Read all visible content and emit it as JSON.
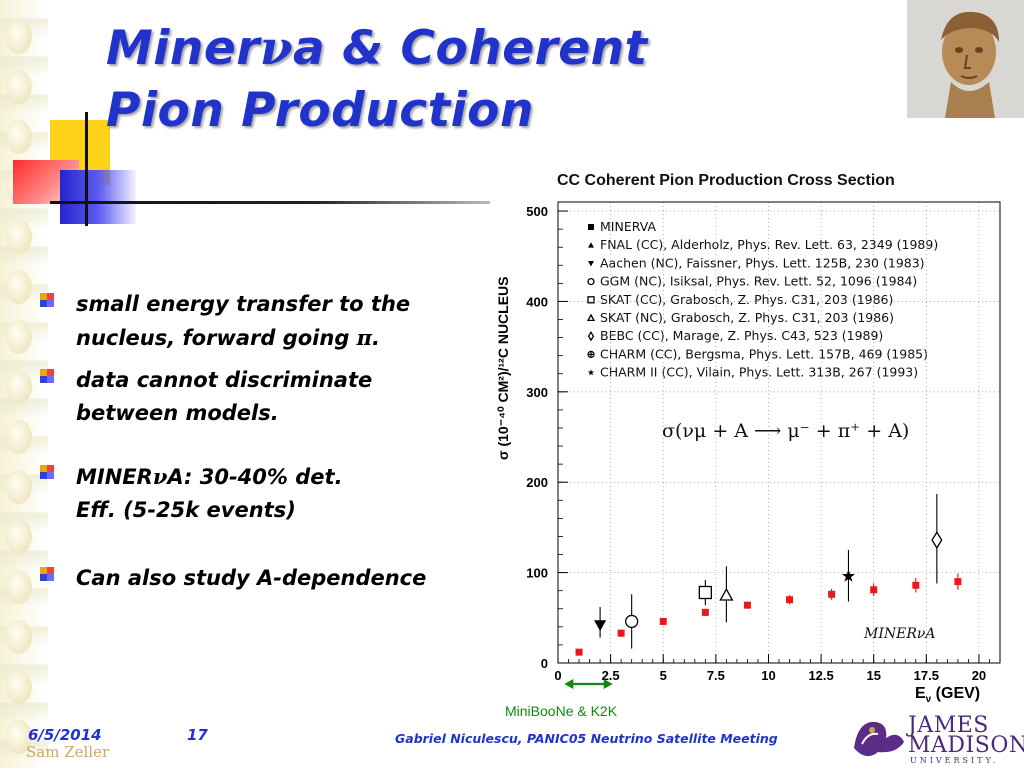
{
  "slide": {
    "title_line1_pre": "Miner",
    "title_line1_nu": "ν",
    "title_line1_post": "a & Coherent",
    "title_line2": "Pion Production"
  },
  "bullets": [
    {
      "pre": "small energy transfer to the",
      "line2": "nucleus, forward going ",
      "sym": "π",
      "post": "."
    },
    {
      "line1": "data cannot discriminate",
      "line2": "between models."
    },
    {
      "pre": "MINER",
      "sym": "ν",
      "post": "A: 30-40% det.",
      "line2": "Eff. (5-25k events)"
    },
    {
      "line1": "Can also study A-dependence"
    }
  ],
  "footer": {
    "date": "6/5/2014",
    "page": "17",
    "author": "Sam Zeller",
    "meeting": "Gabriel Niculescu, PANIC05 Neutrino Satellite Meeting",
    "logo_name_1": "JAMES",
    "logo_name_2": "MADISON",
    "logo_sub": "UNIVERSITY."
  },
  "chart_data": {
    "type": "scatter",
    "title": "CC Coherent Pion Production Cross Section",
    "ylabel": "σ (10⁻⁴⁰ CM²)/¹²C NUCLEUS",
    "xlabel_main": "E",
    "xlabel_sub": "ν",
    "xlabel_unit": " (GEV)",
    "xlim": [
      0,
      21
    ],
    "ylim": [
      0,
      510
    ],
    "xticks": [
      0,
      2.5,
      5,
      7.5,
      10,
      12.5,
      15,
      17.5,
      20
    ],
    "xtick_labels": [
      "0",
      "2.5",
      "5",
      "7.5",
      "10",
      "12.5",
      "15",
      "17.5",
      "20"
    ],
    "yticks": [
      0,
      100,
      200,
      300,
      400,
      500
    ],
    "ytick_labels": [
      "0",
      "100",
      "200",
      "300",
      "400",
      "500"
    ],
    "formula": "σ(νμ + A ⟶ μ⁻ + π⁺ + A)",
    "annotation": "MINERνA",
    "range_label": "MiniBooNe & K2K",
    "range_x": [
      0.3,
      2.6
    ],
    "legend": [
      {
        "marker": "square-filled",
        "label": "MINERVA"
      },
      {
        "marker": "triangle-up-filled",
        "label": "FNAL (CC), Alderholz, Phys. Rev. Lett. 63, 2349 (1989)"
      },
      {
        "marker": "triangle-down-filled",
        "label": "Aachen (NC), Faissner, Phys. Lett. 125B, 230 (1983)"
      },
      {
        "marker": "circle-open",
        "label": "GGM (NC), Isiksal, Phys. Rev. Lett. 52, 1096 (1984)"
      },
      {
        "marker": "square-open",
        "label": "SKAT (CC), Grabosch, Z. Phys. C31, 203 (1986)"
      },
      {
        "marker": "triangle-up-open",
        "label": "SKAT (NC), Grabosch, Z. Phys. C31, 203 (1986)"
      },
      {
        "marker": "diamond-open",
        "label": "BEBC (CC), Marage, Z. Phys. C43, 523 (1989)"
      },
      {
        "marker": "cross-circle",
        "label": "CHARM (CC), Bergsma, Phys. Lett. 157B, 469 (1985)"
      },
      {
        "marker": "star",
        "label": "CHARM II (CC), Vilain, Phys. Lett. 313B, 267 (1993)"
      }
    ],
    "minerva_points": [
      {
        "x": 1.0,
        "y": 12,
        "err": 2
      },
      {
        "x": 3.0,
        "y": 33,
        "err": 4
      },
      {
        "x": 5.0,
        "y": 46,
        "err": 4
      },
      {
        "x": 7.0,
        "y": 56,
        "err": 4
      },
      {
        "x": 9.0,
        "y": 64,
        "err": 4
      },
      {
        "x": 11.0,
        "y": 70,
        "err": 5
      },
      {
        "x": 13.0,
        "y": 76,
        "err": 6
      },
      {
        "x": 15.0,
        "y": 81,
        "err": 7
      },
      {
        "x": 17.0,
        "y": 86,
        "err": 8
      },
      {
        "x": 19.0,
        "y": 90,
        "err": 9
      }
    ],
    "other_points": [
      {
        "marker": "triangle-down-filled",
        "x": 2.0,
        "y": 42,
        "ylo": 28,
        "yhi": 62
      },
      {
        "marker": "circle-open",
        "x": 3.5,
        "y": 46,
        "ylo": 16,
        "yhi": 76
      },
      {
        "marker": "square-open",
        "x": 7.0,
        "y": 78,
        "ylo": 64,
        "yhi": 92
      },
      {
        "marker": "triangle-up-open",
        "x": 8.0,
        "y": 75,
        "ylo": 45,
        "yhi": 107
      },
      {
        "marker": "star",
        "x": 13.8,
        "y": 96,
        "ylo": 68,
        "yhi": 125
      },
      {
        "marker": "diamond-open",
        "x": 18.0,
        "y": 136,
        "ylo": 88,
        "yhi": 187
      }
    ]
  }
}
